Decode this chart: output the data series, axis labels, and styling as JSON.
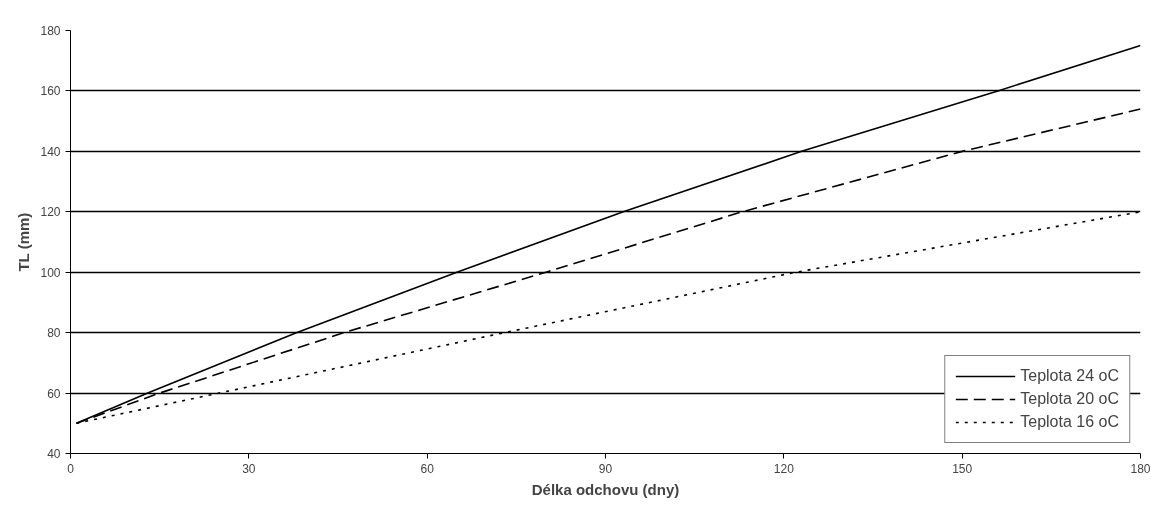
{
  "chart_data": {
    "type": "line",
    "xlabel": "Délka odchovu (dny)",
    "ylabel": "TL (mm)",
    "xlim": [
      0,
      180
    ],
    "xticks": [
      0,
      30,
      60,
      90,
      120,
      150,
      180
    ],
    "ylim": [
      40,
      180
    ],
    "yticks": [
      40,
      60,
      80,
      100,
      120,
      140,
      160,
      180
    ],
    "grid": "y",
    "legend": "bottom right",
    "marker": "none",
    "series": [
      {
        "name": "Teplota 24 oC",
        "color": "#000000",
        "line_style": "solid",
        "x": [
          1,
          13,
          38,
          65,
          93,
          123,
          156,
          180
        ],
        "values": [
          50,
          60,
          80,
          100,
          120,
          140,
          160,
          175
        ]
      },
      {
        "name": "Teplota 20 oC",
        "color": "#000000",
        "line_style": "dashed",
        "x": [
          1,
          15,
          46,
          80,
          113,
          150,
          180
        ],
        "values": [
          50,
          60,
          80,
          100,
          120,
          140,
          154
        ]
      },
      {
        "name": "Teplota 16 oC",
        "color": "#000000",
        "line_style": "dotted",
        "x": [
          1,
          25,
          73,
          122,
          180
        ],
        "values": [
          50,
          60,
          80,
          100,
          120
        ]
      }
    ]
  }
}
